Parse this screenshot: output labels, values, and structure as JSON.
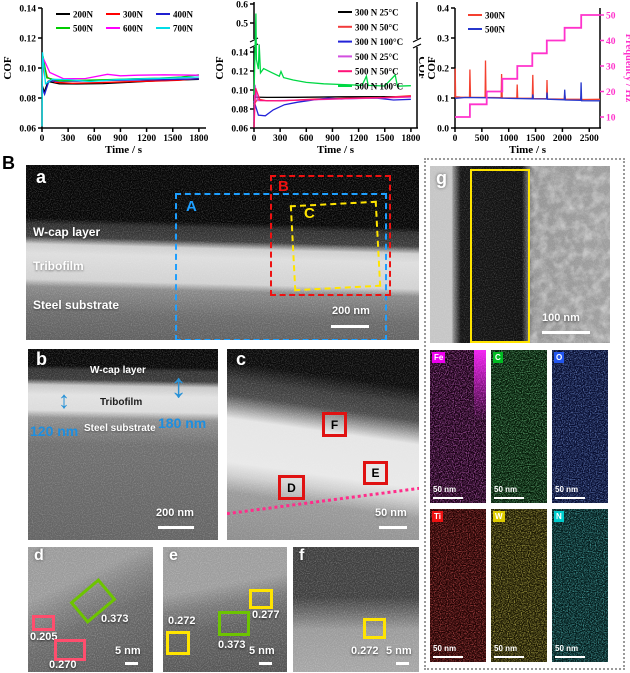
{
  "page": {
    "panel_A_label": "A",
    "panel_B_label": "B"
  },
  "chart_data": [
    {
      "type": "line",
      "title": "",
      "xlabel": "Time / s",
      "ylabel": "COF",
      "xlim": [
        0,
        1870
      ],
      "xticks": [
        0,
        300,
        600,
        900,
        1200,
        1500,
        1800
      ],
      "ylim": [
        0.06,
        0.14
      ],
      "yticks": [
        "0.06",
        "0.08",
        "0.10",
        "0.12",
        "0.14"
      ],
      "grid": false,
      "legend_position": "top-inside",
      "series": [
        {
          "name": "200N",
          "color": "#000000",
          "points": [
            [
              0,
              0.089
            ],
            [
              25,
              0.084
            ],
            [
              70,
              0.091
            ],
            [
              200,
              0.0895
            ],
            [
              400,
              0.0893
            ],
            [
              700,
              0.0896
            ],
            [
              1000,
              0.0905
            ],
            [
              1300,
              0.0915
            ],
            [
              1600,
              0.092
            ],
            [
              1800,
              0.0925
            ]
          ]
        },
        {
          "name": "300N",
          "color": "#ff0000",
          "points": [
            [
              0,
              0.091
            ],
            [
              18,
              0.104
            ],
            [
              60,
              0.094
            ],
            [
              150,
              0.0905
            ],
            [
              350,
              0.0898
            ],
            [
              650,
              0.0902
            ],
            [
              950,
              0.0908
            ],
            [
              1250,
              0.0912
            ],
            [
              1550,
              0.0918
            ],
            [
              1800,
              0.093
            ]
          ]
        },
        {
          "name": "400N",
          "color": "#1f1fd0",
          "points": [
            [
              0,
              0.087
            ],
            [
              30,
              0.0825
            ],
            [
              80,
              0.0915
            ],
            [
              250,
              0.0912
            ],
            [
              500,
              0.0913
            ],
            [
              800,
              0.0918
            ],
            [
              1100,
              0.092
            ],
            [
              1400,
              0.0922
            ],
            [
              1800,
              0.0928
            ]
          ]
        },
        {
          "name": "500N",
          "color": "#00cc00",
          "points": [
            [
              0,
              0.092
            ],
            [
              12,
              0.108
            ],
            [
              55,
              0.0935
            ],
            [
              200,
              0.0915
            ],
            [
              450,
              0.0918
            ],
            [
              750,
              0.0922
            ],
            [
              1050,
              0.0928
            ],
            [
              1350,
              0.0932
            ],
            [
              1600,
              0.094
            ],
            [
              1800,
              0.0955
            ]
          ]
        },
        {
          "name": "600N",
          "color": "#ff00ff",
          "points": [
            [
              0,
              0.093
            ],
            [
              15,
              0.1065
            ],
            [
              90,
              0.097
            ],
            [
              250,
              0.0928
            ],
            [
              500,
              0.093
            ],
            [
              750,
              0.0958
            ],
            [
              900,
              0.0948
            ],
            [
              1100,
              0.0952
            ],
            [
              1400,
              0.0955
            ],
            [
              1800,
              0.0952
            ]
          ]
        },
        {
          "name": "700N",
          "color": "#00dde8",
          "points": [
            [
              0,
              0.061
            ],
            [
              6,
              0.1105
            ],
            [
              40,
              0.0895
            ],
            [
              120,
              0.0925
            ],
            [
              300,
              0.0923
            ],
            [
              550,
              0.091
            ],
            [
              850,
              0.0922
            ],
            [
              1150,
              0.0928
            ],
            [
              1450,
              0.0932
            ],
            [
              1800,
              0.094
            ]
          ]
        }
      ]
    },
    {
      "type": "line",
      "title": "",
      "xlabel": "Time / s",
      "ylabel": "COF",
      "right_axis_label": "COF",
      "xlim": [
        0,
        1870
      ],
      "xticks": [
        0,
        300,
        600,
        900,
        1200,
        1500,
        1800
      ],
      "broken_y": {
        "lower": [
          0.06,
          0.145
        ],
        "upper": [
          0.45,
          0.62
        ]
      },
      "yticks": [
        "0.06",
        "0.08",
        "0.10",
        "0.12",
        "0.14"
      ],
      "upper_yticks": [
        "0.5",
        "0.6"
      ],
      "grid": false,
      "legend_position": "top-right-inside",
      "series": [
        {
          "name": "300 N 25°C",
          "color": "#000000",
          "points": [
            [
              0,
              0.0925
            ],
            [
              150,
              0.0922
            ],
            [
              500,
              0.0923
            ],
            [
              1000,
              0.0928
            ],
            [
              1500,
              0.093
            ],
            [
              1800,
              0.093
            ]
          ]
        },
        {
          "name": "300 N 50°C",
          "color": "#f23b3b",
          "points": [
            [
              0,
              0.0845
            ],
            [
              40,
              0.0905
            ],
            [
              150,
              0.0885
            ],
            [
              350,
              0.0888
            ],
            [
              700,
              0.0905
            ],
            [
              1100,
              0.0915
            ],
            [
              1500,
              0.0922
            ],
            [
              1800,
              0.094
            ]
          ]
        },
        {
          "name": "300 N 100°C",
          "color": "#2222d8",
          "points": [
            [
              0,
              0.0885
            ],
            [
              50,
              0.0735
            ],
            [
              130,
              0.0728
            ],
            [
              220,
              0.079
            ],
            [
              350,
              0.0845
            ],
            [
              500,
              0.0872
            ],
            [
              700,
              0.0898
            ],
            [
              850,
              0.0915
            ],
            [
              1000,
              0.0905
            ],
            [
              1200,
              0.0912
            ],
            [
              1400,
              0.0915
            ],
            [
              1600,
              0.0895
            ],
            [
              1800,
              0.0902
            ]
          ]
        },
        {
          "name": "500 N 25°C",
          "color": "#d24fe0",
          "points": [
            [
              0,
              0.066
            ],
            [
              12,
              0.1055
            ],
            [
              40,
              0.0888
            ],
            [
              250,
              0.0888
            ],
            [
              600,
              0.0895
            ],
            [
              1000,
              0.0905
            ],
            [
              1400,
              0.0915
            ],
            [
              1800,
              0.0925
            ]
          ]
        },
        {
          "name": "500 N 50°C",
          "color": "#ff1378",
          "points": [
            [
              0,
              0.0605
            ],
            [
              18,
              0.102
            ],
            [
              70,
              0.089
            ],
            [
              300,
              0.0885
            ],
            [
              700,
              0.09
            ],
            [
              1100,
              0.0912
            ],
            [
              1500,
              0.092
            ],
            [
              1800,
              0.0932
            ]
          ]
        },
        {
          "name": "500 N 100°C",
          "color": "#00d844",
          "points": [
            [
              0,
              0.095
            ],
            [
              22,
              0.55
            ],
            [
              28,
              0.132
            ],
            [
              50,
              0.122
            ],
            [
              60,
              0.148
            ],
            [
              75,
              0.118
            ],
            [
              110,
              0.1225
            ],
            [
              200,
              0.1185
            ],
            [
              290,
              0.1145
            ],
            [
              310,
              0.1195
            ],
            [
              340,
              0.113
            ],
            [
              450,
              0.1105
            ],
            [
              600,
              0.108
            ],
            [
              800,
              0.1065
            ],
            [
              1000,
              0.1058
            ],
            [
              1240,
              0.105
            ],
            [
              1290,
              0.1145
            ],
            [
              1310,
              0.1048
            ],
            [
              1500,
              0.1042
            ],
            [
              1620,
              0.1158
            ],
            [
              1645,
              0.104
            ],
            [
              1800,
              0.1045
            ]
          ]
        }
      ]
    },
    {
      "type": "line",
      "title": "",
      "xlabel": "Time / s",
      "ylabel": "COF",
      "xlim": [
        0,
        2700
      ],
      "xticks": [
        0,
        500,
        1000,
        1500,
        2000,
        2500
      ],
      "ylim": [
        0.0,
        0.4
      ],
      "yticks": [
        "0.0",
        "0.1",
        "0.2",
        "0.3",
        "0.4"
      ],
      "right_axis": {
        "label": "Frequency / Hz",
        "lim": [
          10,
          50
        ],
        "ticks": [
          "10",
          "20",
          "30",
          "40",
          "50"
        ],
        "color": "#ff33cc"
      },
      "grid": false,
      "legend_position": "top-left-inside",
      "series": [
        {
          "name": "300N",
          "color": "#f44030",
          "points": [
            [
              0,
              0.102
            ],
            [
              4,
              0.198
            ],
            [
              12,
              0.104
            ],
            [
              100,
              0.103
            ],
            [
              270,
              0.102
            ],
            [
              278,
              0.195
            ],
            [
              288,
              0.102
            ],
            [
              560,
              0.102
            ],
            [
              568,
              0.225
            ],
            [
              578,
              0.102
            ],
            [
              860,
              0.101
            ],
            [
              868,
              0.18
            ],
            [
              878,
              0.1
            ],
            [
              1150,
              0.1
            ],
            [
              1158,
              0.145
            ],
            [
              1168,
              0.099
            ],
            [
              1440,
              0.099
            ],
            [
              1448,
              0.177
            ],
            [
              1458,
              0.098
            ],
            [
              1705,
              0.098
            ],
            [
              1713,
              0.16
            ],
            [
              1723,
              0.097
            ],
            [
              2035,
              0.096
            ],
            [
              2043,
              0.115
            ],
            [
              2053,
              0.096
            ],
            [
              2340,
              0.0955
            ],
            [
              2348,
              0.107
            ],
            [
              2358,
              0.095
            ],
            [
              2700,
              0.0955
            ]
          ]
        },
        {
          "name": "500N",
          "color": "#2737cc",
          "points": [
            [
              0,
              0.099
            ],
            [
              200,
              0.1015
            ],
            [
              500,
              0.101
            ],
            [
              800,
              0.1
            ],
            [
              1100,
              0.0985
            ],
            [
              1440,
              0.0975
            ],
            [
              1448,
              0.112
            ],
            [
              1458,
              0.097
            ],
            [
              1705,
              0.0965
            ],
            [
              1713,
              0.118
            ],
            [
              1723,
              0.096
            ],
            [
              2035,
              0.094
            ],
            [
              2043,
              0.128
            ],
            [
              2053,
              0.0935
            ],
            [
              2340,
              0.0925
            ],
            [
              2348,
              0.152
            ],
            [
              2358,
              0.091
            ],
            [
              2700,
              0.0905
            ]
          ]
        },
        {
          "name": "frequency-steps",
          "legend": false,
          "axis": "right",
          "color": "#ff33cc",
          "points": [
            [
              0,
              10
            ],
            [
              277,
              10
            ],
            [
              277,
              15
            ],
            [
              590,
              15
            ],
            [
              590,
              20
            ],
            [
              880,
              20
            ],
            [
              880,
              25
            ],
            [
              1160,
              25
            ],
            [
              1160,
              30
            ],
            [
              1440,
              30
            ],
            [
              1440,
              35
            ],
            [
              1710,
              35
            ],
            [
              1710,
              40
            ],
            [
              2040,
              40
            ],
            [
              2040,
              45
            ],
            [
              2350,
              45
            ],
            [
              2350,
              50
            ],
            [
              2700,
              50
            ]
          ]
        }
      ]
    }
  ],
  "panels": {
    "a": {
      "label": "a",
      "layer_labels": [
        "W-cap layer",
        "Tribofilm",
        "Steel substrate"
      ],
      "region_labels": [
        {
          "text": "A",
          "color": "#1e9fff"
        },
        {
          "text": "B",
          "color": "#ee1111"
        },
        {
          "text": "C",
          "color": "#ffe400"
        }
      ],
      "scale_bar": "200 nm"
    },
    "b": {
      "label": "b",
      "layer_labels": [
        "W-cap layer",
        "Tribofilm",
        "Steel substrate"
      ],
      "thickness_labels": [
        "120 nm",
        "180 nm"
      ],
      "scale_bar": "200 nm"
    },
    "c": {
      "label": "c",
      "site_labels": [
        "D",
        "E",
        "F"
      ],
      "scale_bar": "50 nm"
    },
    "d": {
      "label": "d",
      "lattice_spacings": [
        {
          "value": "0.373",
          "box_color": "#6dc400"
        },
        {
          "value": "0.205",
          "box_color": "#ff4d6d"
        },
        {
          "value": "0.270",
          "box_color": "#ff4d6d"
        }
      ],
      "scale_bar": "5 nm"
    },
    "e": {
      "label": "e",
      "lattice_spacings": [
        {
          "value": "0.272",
          "box_color": "#ffe400"
        },
        {
          "value": "0.373",
          "box_color": "#6dc400"
        },
        {
          "value": "0.277",
          "box_color": "#ffe400"
        }
      ],
      "scale_bar": "5 nm"
    },
    "f": {
      "label": "f",
      "lattice_spacings": [
        {
          "value": "0.272",
          "box_color": "#ffe400"
        }
      ],
      "scale_bar": "5 nm"
    },
    "g": {
      "label": "g",
      "scale_bar": "100 nm"
    },
    "eds_maps": [
      {
        "element": "Fe",
        "chip_color": "#ee00ee",
        "map_base": "#170012",
        "speckle": "#c433c4",
        "scale_bar": "50 nm"
      },
      {
        "element": "C",
        "chip_color": "#00bb22",
        "map_base": "#031806",
        "speckle": "#36a94e",
        "scale_bar": "50 nm"
      },
      {
        "element": "O",
        "chip_color": "#2255ee",
        "map_base": "#060c2e",
        "speckle": "#3a5ccc",
        "scale_bar": "50 nm"
      },
      {
        "element": "Ti",
        "chip_color": "#ee1111",
        "map_base": "#210303",
        "speckle": "#c41d1d",
        "scale_bar": "50 nm"
      },
      {
        "element": "W",
        "chip_color": "#ddcc00",
        "map_base": "#1a1703",
        "speckle": "#b3a31c",
        "scale_bar": "50 nm"
      },
      {
        "element": "N",
        "chip_color": "#00cccc",
        "map_base": "#031a1a",
        "speckle": "#20a0a0",
        "scale_bar": "50 nm"
      }
    ]
  }
}
